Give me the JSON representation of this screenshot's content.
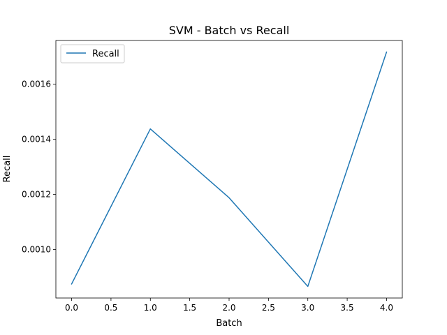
{
  "chart_data": {
    "type": "line",
    "title": "SVM - Batch vs Recall",
    "xlabel": "Batch",
    "ylabel": "Recall",
    "x": [
      0,
      1,
      2,
      3,
      4
    ],
    "series": [
      {
        "name": "Recall",
        "color": "#1f77b4",
        "values": [
          0.000875,
          0.001438,
          0.001188,
          0.000866,
          0.001717
        ]
      }
    ],
    "xlim": [
      -0.2,
      4.2
    ],
    "ylim": [
      0.000824,
      0.001759
    ],
    "xticks": [
      0.0,
      0.5,
      1.0,
      1.5,
      2.0,
      2.5,
      3.0,
      3.5,
      4.0
    ],
    "xtick_labels": [
      "0.0",
      "0.5",
      "1.0",
      "1.5",
      "2.0",
      "2.5",
      "3.0",
      "3.5",
      "4.0"
    ],
    "yticks": [
      0.001,
      0.0012,
      0.0014,
      0.0016
    ],
    "ytick_labels": [
      "0.0010",
      "0.0012",
      "0.0014",
      "0.0016"
    ],
    "grid": false,
    "legend_position": "top-left"
  }
}
